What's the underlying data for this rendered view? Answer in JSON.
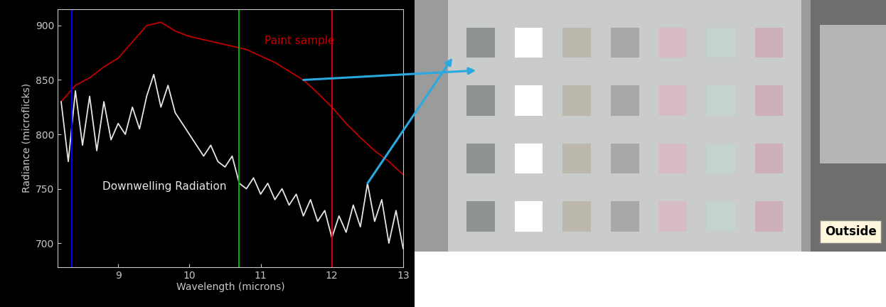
{
  "chart_data": {
    "type": "line",
    "x_label": "Wavelength (microns)",
    "y_label": "Radiance (microflicks)",
    "xlim": [
      8.15,
      13.0
    ],
    "xticks": [
      9,
      10,
      11,
      12,
      13
    ],
    "ylim": [
      678,
      915
    ],
    "yticks": [
      700,
      750,
      800,
      850,
      900
    ],
    "grid": false,
    "series": [
      {
        "name": "Paint sample",
        "color": "#c00000",
        "x": [
          8.2,
          8.4,
          8.6,
          8.8,
          9.0,
          9.2,
          9.4,
          9.6,
          9.8,
          10.0,
          10.2,
          10.4,
          10.6,
          10.8,
          11.0,
          11.2,
          11.4,
          11.6,
          11.8,
          12.0,
          12.2,
          12.4,
          12.6,
          12.8,
          13.0
        ],
        "values": [
          830,
          845,
          852,
          862,
          870,
          885,
          900,
          903,
          895,
          890,
          887,
          884,
          881,
          878,
          872,
          866,
          858,
          850,
          838,
          825,
          810,
          797,
          785,
          775,
          763
        ]
      },
      {
        "name": "Downwelling Radiation",
        "color": "#e6e6e6",
        "x": [
          8.2,
          8.3,
          8.4,
          8.5,
          8.6,
          8.7,
          8.8,
          8.9,
          9.0,
          9.1,
          9.2,
          9.3,
          9.4,
          9.5,
          9.6,
          9.7,
          9.8,
          9.9,
          10.0,
          10.1,
          10.2,
          10.3,
          10.4,
          10.5,
          10.6,
          10.7,
          10.8,
          10.9,
          11.0,
          11.1,
          11.2,
          11.3,
          11.4,
          11.5,
          11.6,
          11.7,
          11.8,
          11.9,
          12.0,
          12.1,
          12.2,
          12.3,
          12.4,
          12.5,
          12.6,
          12.7,
          12.8,
          12.9,
          13.0
        ],
        "values": [
          830,
          775,
          840,
          790,
          835,
          785,
          830,
          795,
          810,
          800,
          825,
          805,
          835,
          855,
          825,
          845,
          820,
          810,
          800,
          790,
          780,
          790,
          775,
          770,
          780,
          755,
          750,
          760,
          745,
          755,
          740,
          750,
          735,
          745,
          725,
          740,
          720,
          730,
          705,
          725,
          710,
          735,
          715,
          755,
          720,
          740,
          700,
          730,
          695
        ]
      }
    ],
    "vlines": [
      {
        "x": 8.35,
        "color": "#0000ff"
      },
      {
        "x": 10.7,
        "color": "#00b000"
      },
      {
        "x": 12.0,
        "color": "#d00000"
      }
    ],
    "annotations": [
      "Outside"
    ]
  }
}
